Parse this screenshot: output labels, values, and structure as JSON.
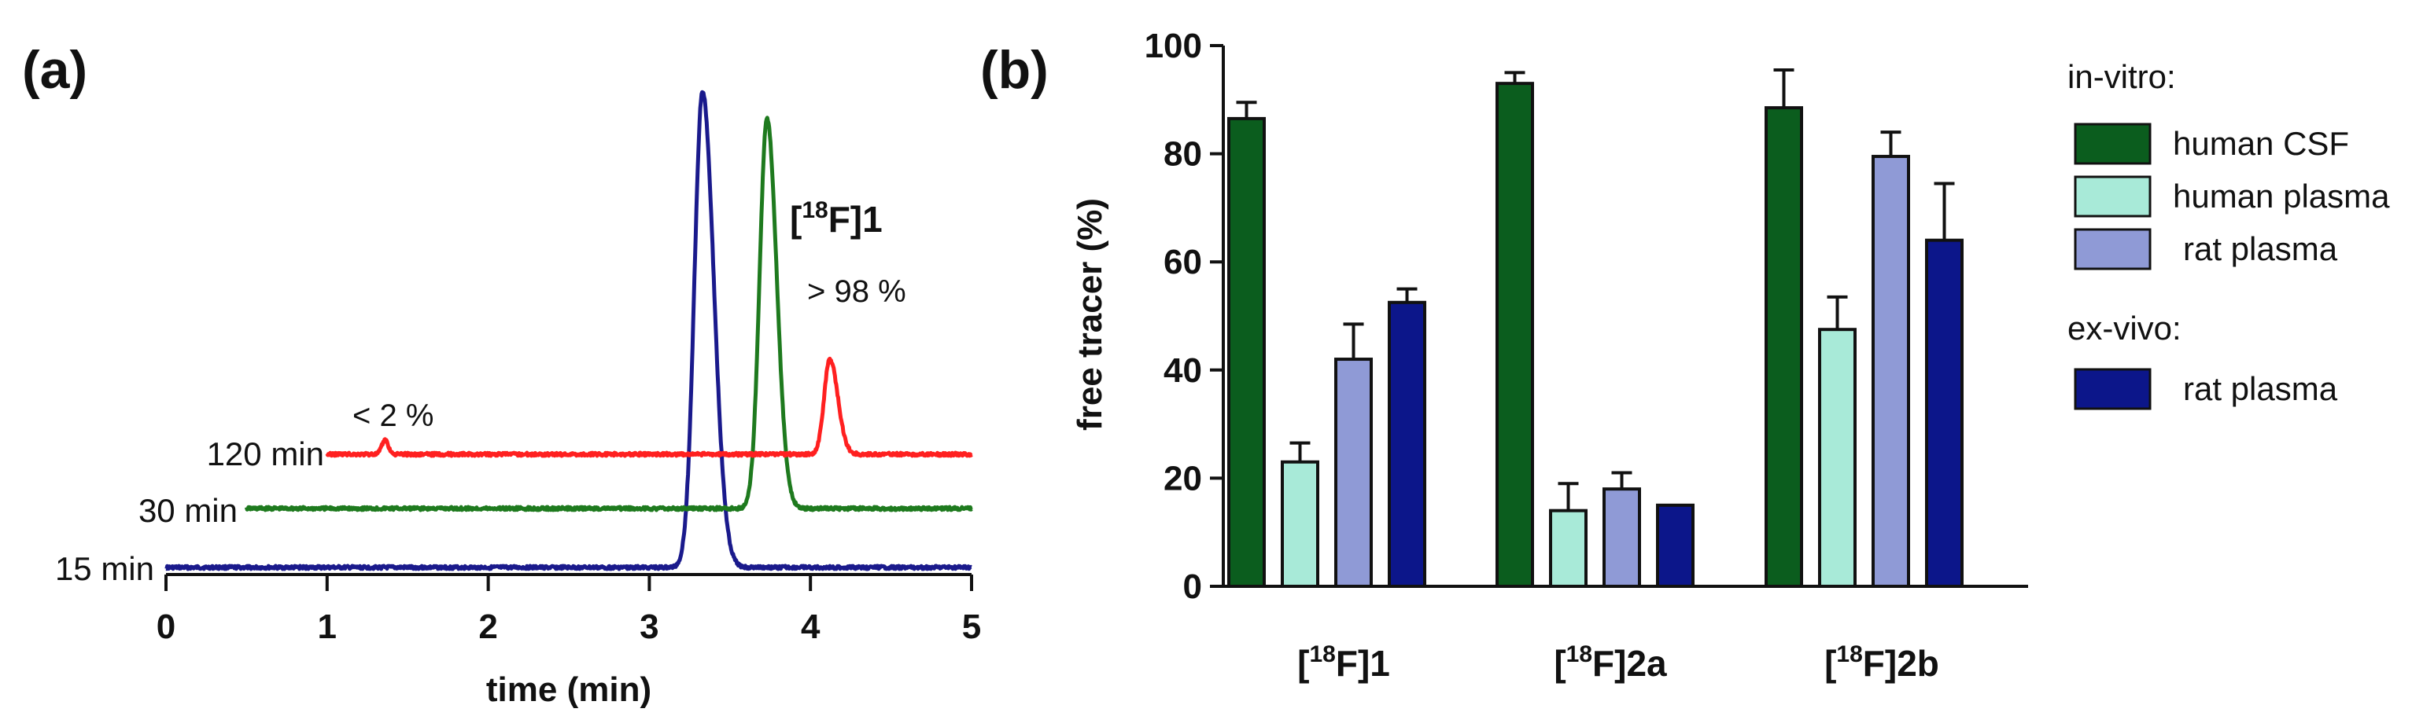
{
  "panel_a": {
    "label": "(a)",
    "chart_data": {
      "type": "line",
      "xlabel": "time (min)",
      "xlim": [
        0,
        5
      ],
      "xticks": [
        "0",
        "1",
        "2",
        "3",
        "4",
        "5"
      ],
      "annotations": {
        "compound": "[18F]1",
        "compound_parts": [
          "[",
          "18",
          "F]1"
        ],
        "minor_peak": "< 2 %",
        "major_peak": "> 98 %"
      },
      "series": [
        {
          "name": "15 min",
          "label": "15 min",
          "color": "#1a1a8c",
          "x_start": 0.0,
          "peaks": [
            {
              "center": 3.33,
              "height": 1.0,
              "sigma_left": 0.05,
              "sigma_right": 0.07
            }
          ]
        },
        {
          "name": "30 min",
          "label": "30 min",
          "color": "#1e7a1e",
          "x_start": 0.5,
          "peaks": [
            {
              "center": 3.73,
              "height": 0.82,
              "sigma_left": 0.045,
              "sigma_right": 0.06
            }
          ]
        },
        {
          "name": "120 min",
          "label": "120 min",
          "color": "#ff2020",
          "x_start": 1.0,
          "peaks": [
            {
              "center": 1.36,
              "height": 0.03,
              "sigma_left": 0.02,
              "sigma_right": 0.02
            },
            {
              "center": 4.12,
              "height": 0.2,
              "sigma_left": 0.035,
              "sigma_right": 0.05
            }
          ]
        }
      ]
    }
  },
  "panel_b": {
    "label": "(b)",
    "chart_data": {
      "type": "bar",
      "ylabel": "free tracer (%)",
      "ylim": [
        0,
        100
      ],
      "yticks": [
        "0",
        "20",
        "40",
        "60",
        "80",
        "100"
      ],
      "categories": [
        "[18F]1",
        "[18F]2a",
        "[18F]2b"
      ],
      "category_parts": [
        [
          "[",
          "18",
          "F]1"
        ],
        [
          "[",
          "18",
          "F]2a"
        ],
        [
          "[",
          "18",
          "F]2b"
        ]
      ],
      "series": [
        {
          "name": "human CSF",
          "group": "in-vitro",
          "color": "#0b5d1e",
          "values": [
            86.5,
            93,
            88.5
          ],
          "errors": [
            3,
            2,
            7
          ]
        },
        {
          "name": "human plasma",
          "group": "in-vitro",
          "color": "#a8ead8",
          "values": [
            23,
            14,
            47.5
          ],
          "errors": [
            3.5,
            5,
            6
          ]
        },
        {
          "name": "rat plasma",
          "group": "in-vitro",
          "color": "#8f9ad6",
          "values": [
            42,
            18,
            79.5
          ],
          "errors": [
            6.5,
            3,
            4.5
          ]
        },
        {
          "name": "rat plasma",
          "group": "ex-vivo",
          "color": "#0c168a",
          "values": [
            52.5,
            15,
            64
          ],
          "errors": [
            2.5,
            0,
            10.5
          ]
        }
      ],
      "legend": {
        "in_vitro_title": "in-vitro:",
        "ex_vivo_title": "ex-vivo:",
        "items": [
          "human CSF",
          "human plasma",
          "rat plasma",
          "rat plasma"
        ]
      }
    }
  }
}
